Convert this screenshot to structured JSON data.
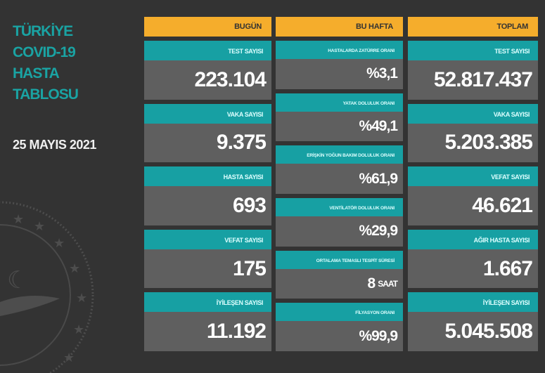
{
  "title_lines": [
    "TÜRKİYE",
    "COVID-19",
    "HASTA",
    "TABLOSU"
  ],
  "date": "25 MAYIS 2021",
  "colors": {
    "background": "#333333",
    "header": "#f5ad2c",
    "label": "#17a0a3",
    "value_box": "#5f5f5f",
    "title": "#1aa3a3"
  },
  "today": {
    "header": "BUGÜN",
    "items": [
      {
        "label": "TEST SAYISI",
        "value": "223.104"
      },
      {
        "label": "VAKA SAYISI",
        "value": "9.375"
      },
      {
        "label": "HASTA SAYISI",
        "value": "693"
      },
      {
        "label": "VEFAT SAYISI",
        "value": "175"
      },
      {
        "label": "İYİLEŞEN SAYISI",
        "value": "11.192"
      }
    ]
  },
  "week": {
    "header": "BU HAFTA",
    "items": [
      {
        "label": "HASTALARDA ZATÜRRE ORANI",
        "value": "%3,1"
      },
      {
        "label": "YATAK DOLULUK ORANI",
        "value": "%49,1"
      },
      {
        "label": "ERİŞKİN YOĞUN BAKIM DOLULUK ORANI",
        "value": "%61,9"
      },
      {
        "label": "VENTİLATÖR DOLULUK ORANI",
        "value": "%29,9"
      },
      {
        "label": "ORTALAMA TEMASLI TESPİT SÜRESİ",
        "value": "8",
        "unit": "SAAT"
      },
      {
        "label": "FİLYASYON ORANI",
        "value": "%99,9"
      }
    ]
  },
  "total": {
    "header": "TOPLAM",
    "items": [
      {
        "label": "TEST SAYISI",
        "value": "52.817.437"
      },
      {
        "label": "VAKA SAYISI",
        "value": "5.203.385"
      },
      {
        "label": "VEFAT SAYISI",
        "value": "46.621"
      },
      {
        "label": "AĞIR HASTA SAYISI",
        "value": "1.667"
      },
      {
        "label": "İYİLEŞEN SAYISI",
        "value": "5.045.508"
      }
    ]
  }
}
